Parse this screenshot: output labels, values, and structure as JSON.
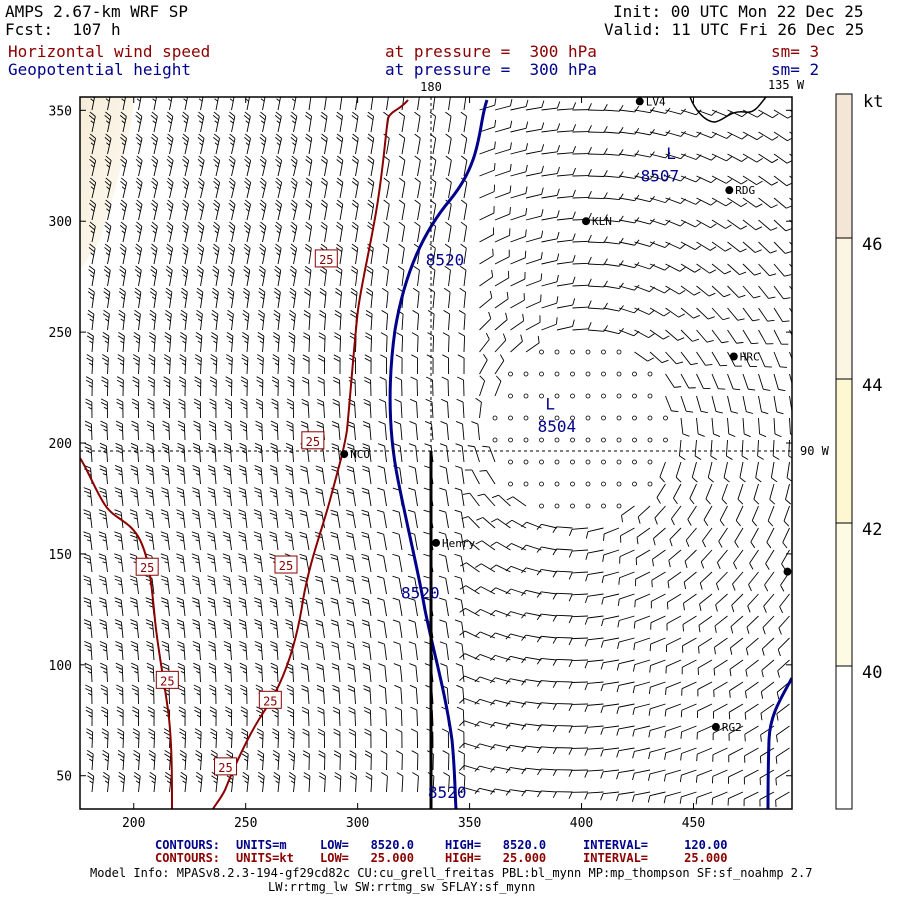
{
  "header": {
    "model": "AMPS 2.67-km WRF SP",
    "forecast": "Fcst:  107 h",
    "init": "Init: 00 UTC Mon 22 Dec 25",
    "valid": "Valid: 11 UTC Fri 26 Dec 25",
    "field1": {
      "name": "Horizontal wind speed",
      "level": "at pressure =  300 hPa",
      "smooth": "sm= 3"
    },
    "field2": {
      "name": "Geopotential height",
      "level": "at pressure =  300 hPa",
      "smooth": "sm= 2"
    }
  },
  "map": {
    "meridian_180": "180",
    "meridian_135w": "135 W",
    "parallel_90w": "90 W",
    "x_ticks": [
      "200",
      "250",
      "300",
      "350",
      "400",
      "450"
    ],
    "x_tick_values": [
      200,
      250,
      300,
      350,
      400,
      450
    ],
    "y_ticks": [
      "350",
      "300",
      "250",
      "200",
      "150",
      "100",
      "50"
    ],
    "y_tick_values": [
      350,
      300,
      250,
      200,
      150,
      100,
      50
    ],
    "x_range": [
      176,
      494
    ],
    "y_range": [
      35,
      356
    ],
    "stations": [
      {
        "label": "LV4",
        "x": 426,
        "y": 354
      },
      {
        "label": "RDG",
        "x": 466,
        "y": 314
      },
      {
        "label": "KLN",
        "x": 402,
        "y": 300
      },
      {
        "label": "HRC",
        "x": 468,
        "y": 239
      },
      {
        "label": "NCO",
        "x": 294,
        "y": 195
      },
      {
        "label": "Henry",
        "x": 335,
        "y": 155
      },
      {
        "label": "RG2",
        "x": 460,
        "y": 72
      },
      {
        "label": "",
        "x": 492,
        "y": 142
      }
    ],
    "height_labels": [
      {
        "text": "8520",
        "x": 339,
        "y": 280
      },
      {
        "text": "8520",
        "x": 328,
        "y": 130
      },
      {
        "text": "8520",
        "x": 340,
        "y": 40
      },
      {
        "text": "8507",
        "x": 435,
        "y": 318
      },
      {
        "text": "8504",
        "x": 389,
        "y": 205
      }
    ],
    "lows": [
      {
        "text": "L",
        "x": 440,
        "y": 328
      },
      {
        "text": "L",
        "x": 386,
        "y": 215
      }
    ],
    "wind_contour_labels": [
      {
        "text": "25",
        "x": 286,
        "y": 283
      },
      {
        "text": "25",
        "x": 280,
        "y": 201
      },
      {
        "text": "25",
        "x": 268,
        "y": 145
      },
      {
        "text": "25",
        "x": 206,
        "y": 144
      },
      {
        "text": "25",
        "x": 215,
        "y": 93
      },
      {
        "text": "25",
        "x": 261,
        "y": 84
      },
      {
        "text": "25",
        "x": 241,
        "y": 54
      }
    ]
  },
  "colorbar": {
    "unit": "kt",
    "ticks": [
      "46",
      "44",
      "42",
      "40"
    ]
  },
  "footer": {
    "line1": {
      "label": "CONTOURS:",
      "units": "UNITS=m",
      "low": "LOW=   8520.0",
      "high": "HIGH=   8520.0",
      "interval": "INTERVAL=     120.00"
    },
    "line2": {
      "label": "CONTOURS:",
      "units": "UNITS=kt",
      "low": "LOW=   25.000",
      "high": "HIGH=   25.000",
      "interval": "INTERVAL=     25.000"
    },
    "model_info_1": "Model Info: MPASv8.2.3-194-gf29cd82c CU:cu_grell_freitas PBL:bl_mynn MP:mp_thompson SF:sf_noahmp 2.7",
    "model_info_2": "LW:rrtmg_lw SW:rrtmg_sw SFLAY:sf_mynn"
  },
  "colors": {
    "height_contour": "#00008b",
    "wind_contour": "#8b0000",
    "barb": "#000000",
    "colorbar_top": "#f3e6d6",
    "colorbar_mid": "#fbf3c6"
  }
}
